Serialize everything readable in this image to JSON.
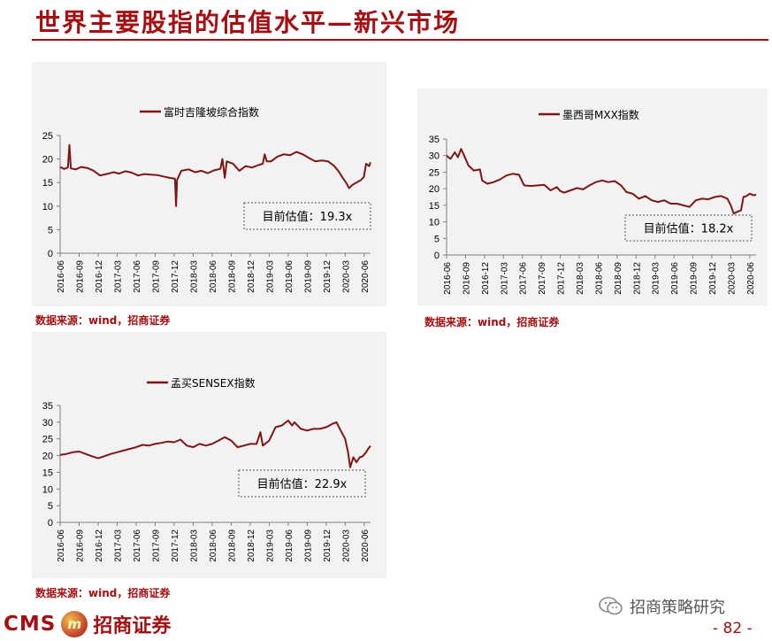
{
  "page": {
    "title": "世界主要股指的估值水平—新兴市场",
    "source_text": "数据来源：wind，招商证券",
    "logo_cms": "CMS",
    "logo_badge": "m",
    "logo_cn": "招商证券",
    "wechat_text": "招商策略研究",
    "page_number": "- 82 -"
  },
  "colors": {
    "series": "#7f1515",
    "title": "#a50f12",
    "panel_bg": "#f2f2f2"
  },
  "chart_data": [
    {
      "type": "line",
      "series_name": "富时吉隆坡综合指数",
      "callout": "目前估值：19.3x",
      "ylim": [
        0,
        25
      ],
      "yticks": [
        0,
        5,
        10,
        15,
        20,
        25
      ],
      "xticks": [
        "2016-06",
        "2016-09",
        "2016-12",
        "2017-03",
        "2017-06",
        "2017-09",
        "2017-12",
        "2018-03",
        "2018-06",
        "2018-09",
        "2018-12",
        "2019-03",
        "2019-06",
        "2019-09",
        "2019-12",
        "2020-03",
        "2020-06"
      ],
      "x_start": "2016-06",
      "x_end": "2020-07",
      "points": [
        [
          "2016-06-01",
          18.3
        ],
        [
          "2016-06-20",
          17.9
        ],
        [
          "2016-07-08",
          18.2
        ],
        [
          "2016-07-15",
          23.0
        ],
        [
          "2016-07-22",
          18.0
        ],
        [
          "2016-08-15",
          17.8
        ],
        [
          "2016-09-10",
          18.3
        ],
        [
          "2016-10-10",
          18.1
        ],
        [
          "2016-11-10",
          17.5
        ],
        [
          "2016-12-10",
          16.5
        ],
        [
          "2017-01-10",
          16.8
        ],
        [
          "2017-02-15",
          17.2
        ],
        [
          "2017-03-10",
          16.9
        ],
        [
          "2017-04-10",
          17.4
        ],
        [
          "2017-05-10",
          17.1
        ],
        [
          "2017-06-10",
          16.5
        ],
        [
          "2017-07-10",
          16.8
        ],
        [
          "2017-08-10",
          16.7
        ],
        [
          "2017-09-10",
          16.6
        ],
        [
          "2017-10-10",
          16.3
        ],
        [
          "2017-11-10",
          16.0
        ],
        [
          "2017-12-05",
          15.8
        ],
        [
          "2017-12-10",
          10.0
        ],
        [
          "2017-12-15",
          15.5
        ],
        [
          "2018-01-05",
          17.5
        ],
        [
          "2018-02-10",
          17.8
        ],
        [
          "2018-03-10",
          17.2
        ],
        [
          "2018-04-10",
          17.5
        ],
        [
          "2018-05-10",
          17.0
        ],
        [
          "2018-06-10",
          17.6
        ],
        [
          "2018-07-10",
          17.9
        ],
        [
          "2018-07-20",
          20.0
        ],
        [
          "2018-08-01",
          16.0
        ],
        [
          "2018-08-10",
          19.5
        ],
        [
          "2018-09-10",
          19.0
        ],
        [
          "2018-10-10",
          17.5
        ],
        [
          "2018-11-10",
          18.5
        ],
        [
          "2018-12-10",
          18.2
        ],
        [
          "2019-01-10",
          18.7
        ],
        [
          "2019-02-01",
          19.0
        ],
        [
          "2019-02-10",
          21.0
        ],
        [
          "2019-02-20",
          19.5
        ],
        [
          "2019-03-10",
          19.5
        ],
        [
          "2019-04-10",
          20.5
        ],
        [
          "2019-05-10",
          21.0
        ],
        [
          "2019-06-10",
          20.8
        ],
        [
          "2019-07-10",
          21.5
        ],
        [
          "2019-08-10",
          21.0
        ],
        [
          "2019-09-10",
          20.2
        ],
        [
          "2019-10-10",
          19.5
        ],
        [
          "2019-11-10",
          19.7
        ],
        [
          "2019-12-10",
          19.5
        ],
        [
          "2020-01-10",
          18.5
        ],
        [
          "2020-02-01",
          17.3
        ],
        [
          "2020-02-20",
          16.0
        ],
        [
          "2020-03-05",
          15.0
        ],
        [
          "2020-03-20",
          13.8
        ],
        [
          "2020-04-05",
          14.5
        ],
        [
          "2020-04-25",
          15.0
        ],
        [
          "2020-05-15",
          15.5
        ],
        [
          "2020-05-30",
          16.2
        ],
        [
          "2020-06-10",
          19.0
        ],
        [
          "2020-06-25",
          18.5
        ],
        [
          "2020-07-01",
          19.3
        ]
      ]
    },
    {
      "type": "line",
      "series_name": "墨西哥MXX指数",
      "callout": "目前估值：18.2x",
      "ylim": [
        0,
        35
      ],
      "yticks": [
        0,
        5,
        10,
        15,
        20,
        25,
        30,
        35
      ],
      "xticks": [
        "2016-06",
        "2016-09",
        "2016-12",
        "2017-03",
        "2017-06",
        "2017-09",
        "2017-12",
        "2018-03",
        "2018-06",
        "2018-09",
        "2018-12",
        "2019-03",
        "2019-06",
        "2019-09",
        "2019-12",
        "2020-03",
        "2020-06"
      ],
      "x_start": "2016-06",
      "x_end": "2020-07",
      "points": [
        [
          "2016-06-01",
          30.0
        ],
        [
          "2016-06-20",
          29.0
        ],
        [
          "2016-07-10",
          31.0
        ],
        [
          "2016-07-25",
          29.5
        ],
        [
          "2016-08-10",
          32.0
        ],
        [
          "2016-08-25",
          30.0
        ],
        [
          "2016-09-15",
          27.0
        ],
        [
          "2016-10-10",
          25.5
        ],
        [
          "2016-11-10",
          25.8
        ],
        [
          "2016-11-20",
          22.5
        ],
        [
          "2016-12-15",
          21.5
        ],
        [
          "2017-01-15",
          22.0
        ],
        [
          "2017-02-15",
          22.8
        ],
        [
          "2017-03-15",
          24.0
        ],
        [
          "2017-04-15",
          24.5
        ],
        [
          "2017-05-15",
          24.2
        ],
        [
          "2017-06-10",
          21.0
        ],
        [
          "2017-07-10",
          20.8
        ],
        [
          "2017-08-15",
          21.0
        ],
        [
          "2017-09-15",
          21.2
        ],
        [
          "2017-10-15",
          19.5
        ],
        [
          "2017-11-15",
          20.5
        ],
        [
          "2017-12-01",
          19.3
        ],
        [
          "2017-12-20",
          18.8
        ],
        [
          "2018-01-20",
          19.5
        ],
        [
          "2018-02-20",
          20.2
        ],
        [
          "2018-03-20",
          19.8
        ],
        [
          "2018-04-20",
          21.0
        ],
        [
          "2018-05-20",
          22.0
        ],
        [
          "2018-06-20",
          22.5
        ],
        [
          "2018-07-20",
          22.0
        ],
        [
          "2018-08-20",
          22.3
        ],
        [
          "2018-09-20",
          21.0
        ],
        [
          "2018-10-15",
          19.0
        ],
        [
          "2018-11-15",
          18.5
        ],
        [
          "2018-12-15",
          17.0
        ],
        [
          "2019-01-15",
          17.8
        ],
        [
          "2019-02-15",
          16.5
        ],
        [
          "2019-03-15",
          16.0
        ],
        [
          "2019-04-15",
          16.5
        ],
        [
          "2019-05-15",
          15.5
        ],
        [
          "2019-06-15",
          15.5
        ],
        [
          "2019-07-15",
          15.0
        ],
        [
          "2019-08-15",
          14.5
        ],
        [
          "2019-09-15",
          16.5
        ],
        [
          "2019-10-15",
          17.0
        ],
        [
          "2019-11-15",
          16.8
        ],
        [
          "2019-12-15",
          17.5
        ],
        [
          "2020-01-15",
          17.8
        ],
        [
          "2020-02-15",
          17.0
        ],
        [
          "2020-03-01",
          15.0
        ],
        [
          "2020-03-15",
          12.5
        ],
        [
          "2020-04-01",
          13.0
        ],
        [
          "2020-04-20",
          13.5
        ],
        [
          "2020-05-01",
          17.5
        ],
        [
          "2020-05-15",
          17.8
        ],
        [
          "2020-06-01",
          18.5
        ],
        [
          "2020-06-20",
          18.0
        ],
        [
          "2020-07-01",
          18.2
        ]
      ]
    },
    {
      "type": "line",
      "series_name": "孟买SENSEX指数",
      "callout": "目前估值：22.9x",
      "ylim": [
        0,
        35
      ],
      "yticks": [
        0,
        5,
        10,
        15,
        20,
        25,
        30,
        35
      ],
      "xticks": [
        "2016-06",
        "2016-09",
        "2016-12",
        "2017-03",
        "2017-06",
        "2017-09",
        "2017-12",
        "2018-03",
        "2018-06",
        "2018-09",
        "2018-12",
        "2019-03",
        "2019-06",
        "2019-09",
        "2019-12",
        "2020-03",
        "2020-06"
      ],
      "x_start": "2016-06",
      "x_end": "2020-07",
      "points": [
        [
          "2016-06-01",
          20.2
        ],
        [
          "2016-07-01",
          20.5
        ],
        [
          "2016-08-01",
          21.0
        ],
        [
          "2016-09-01",
          21.2
        ],
        [
          "2016-10-01",
          20.5
        ],
        [
          "2016-11-01",
          19.8
        ],
        [
          "2016-12-01",
          19.2
        ],
        [
          "2017-01-01",
          19.8
        ],
        [
          "2017-02-01",
          20.5
        ],
        [
          "2017-03-01",
          21.0
        ],
        [
          "2017-04-01",
          21.5
        ],
        [
          "2017-05-01",
          22.0
        ],
        [
          "2017-06-01",
          22.5
        ],
        [
          "2017-07-01",
          23.2
        ],
        [
          "2017-08-01",
          23.0
        ],
        [
          "2017-09-01",
          23.5
        ],
        [
          "2017-10-01",
          23.8
        ],
        [
          "2017-11-01",
          24.2
        ],
        [
          "2017-12-01",
          24.0
        ],
        [
          "2018-01-01",
          24.8
        ],
        [
          "2018-02-01",
          23.0
        ],
        [
          "2018-03-01",
          22.5
        ],
        [
          "2018-04-01",
          23.5
        ],
        [
          "2018-05-01",
          23.0
        ],
        [
          "2018-06-01",
          23.5
        ],
        [
          "2018-07-01",
          24.5
        ],
        [
          "2018-08-01",
          25.5
        ],
        [
          "2018-09-01",
          24.5
        ],
        [
          "2018-10-01",
          22.5
        ],
        [
          "2018-11-01",
          23.0
        ],
        [
          "2018-12-01",
          23.5
        ],
        [
          "2019-01-01",
          23.5
        ],
        [
          "2019-01-20",
          27.0
        ],
        [
          "2019-02-01",
          23.0
        ],
        [
          "2019-03-01",
          24.5
        ],
        [
          "2019-04-01",
          28.5
        ],
        [
          "2019-05-01",
          29.0
        ],
        [
          "2019-06-01",
          30.5
        ],
        [
          "2019-06-20",
          29.0
        ],
        [
          "2019-07-01",
          30.0
        ],
        [
          "2019-08-01",
          28.0
        ],
        [
          "2019-09-01",
          27.5
        ],
        [
          "2019-10-01",
          28.0
        ],
        [
          "2019-11-01",
          28.0
        ],
        [
          "2019-12-01",
          28.5
        ],
        [
          "2020-01-01",
          29.5
        ],
        [
          "2020-01-20",
          30.0
        ],
        [
          "2020-02-10",
          27.5
        ],
        [
          "2020-03-01",
          25.0
        ],
        [
          "2020-03-15",
          21.0
        ],
        [
          "2020-03-25",
          16.5
        ],
        [
          "2020-04-10",
          19.5
        ],
        [
          "2020-04-25",
          18.0
        ],
        [
          "2020-05-10",
          19.5
        ],
        [
          "2020-05-25",
          19.8
        ],
        [
          "2020-06-10",
          21.0
        ],
        [
          "2020-06-20",
          22.0
        ],
        [
          "2020-07-01",
          22.9
        ]
      ]
    }
  ]
}
